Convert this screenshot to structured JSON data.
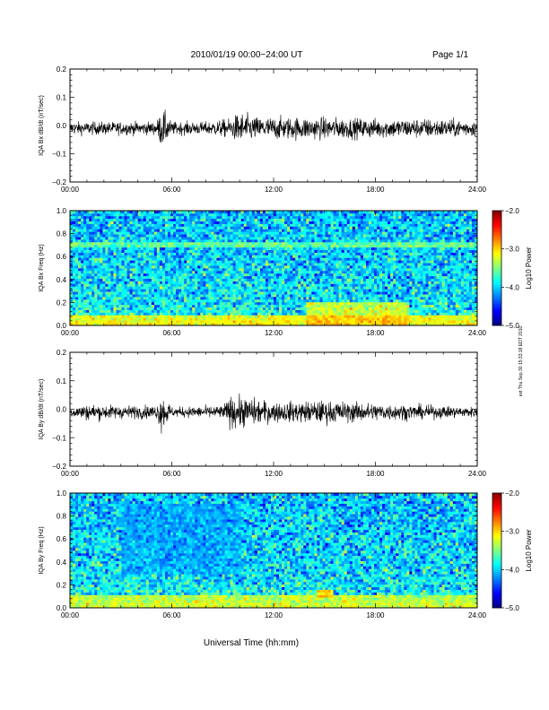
{
  "header": {
    "title": "2010/01/19  00:00−24:00 UT",
    "page": "Page 1/1"
  },
  "footer": {
    "xlabel": "Universal Time (hh:mm)"
  },
  "side_stamp": "ext Thu Sep 30 15:33:18 EDT 2010",
  "chart_data": [
    {
      "type": "line",
      "name": "bx-dbdt",
      "ylabel": "IQA Bx dB/dt (nT/sec)",
      "ylim": [
        -0.2,
        0.2
      ],
      "yticks": [
        -0.2,
        -0.1,
        0.0,
        0.1,
        0.2
      ],
      "ytick_labels": [
        "−0.2",
        "−0.1",
        "0.0",
        "0.1",
        "0.2"
      ],
      "xlim": [
        0,
        24
      ],
      "xticks": [
        0,
        6,
        12,
        18,
        24
      ],
      "xtick_labels": [
        "00:00",
        "06:00",
        "12:00",
        "18:00",
        "24:00"
      ],
      "envelope": [
        {
          "t": 0.0,
          "amp": 0.02
        },
        {
          "t": 2.0,
          "amp": 0.02
        },
        {
          "t": 4.5,
          "amp": 0.02
        },
        {
          "t": 5.1,
          "amp": 0.02
        },
        {
          "t": 5.4,
          "amp": 0.06
        },
        {
          "t": 5.6,
          "amp": 0.05
        },
        {
          "t": 6.0,
          "amp": 0.02
        },
        {
          "t": 8.0,
          "amp": 0.02
        },
        {
          "t": 9.5,
          "amp": 0.03
        },
        {
          "t": 10.0,
          "amp": 0.05
        },
        {
          "t": 11.0,
          "amp": 0.035
        },
        {
          "t": 14.0,
          "amp": 0.035
        },
        {
          "t": 18.0,
          "amp": 0.03
        },
        {
          "t": 21.0,
          "amp": 0.03
        },
        {
          "t": 24.0,
          "amp": 0.025
        }
      ]
    },
    {
      "type": "heatmap",
      "name": "bx-spectrogram",
      "ylabel": "IQA Bx Freq (Hz)",
      "ylim": [
        0.0,
        1.0
      ],
      "yticks": [
        0.0,
        0.2,
        0.4,
        0.6,
        0.8,
        1.0
      ],
      "ytick_labels": [
        "0.0",
        "0.2",
        "0.4",
        "0.6",
        "0.8",
        "1.0"
      ],
      "xlim": [
        0,
        24
      ],
      "xticks": [
        0,
        6,
        12,
        18,
        24
      ],
      "xtick_labels": [
        "00:00",
        "06:00",
        "12:00",
        "18:00",
        "24:00"
      ],
      "colorbar": {
        "label": "Log10 Power",
        "min": -5.0,
        "max": -2.0,
        "ticks": [
          -5.0,
          -4.0,
          -3.0,
          -2.0
        ],
        "tick_labels": [
          "−5.0",
          "−4.0",
          "−3.0",
          "−2.0"
        ]
      },
      "enhancements": [
        {
          "t0": 14.0,
          "t1": 20.0,
          "f0": 0.0,
          "f1": 0.2,
          "level": -2.9
        },
        {
          "t0": 0.0,
          "t1": 24.0,
          "f0": 0.0,
          "f1": 0.08,
          "level": -2.8
        },
        {
          "t0": 0.0,
          "t1": 24.0,
          "f0": 0.68,
          "f1": 0.72,
          "level": -3.3
        }
      ]
    },
    {
      "type": "line",
      "name": "by-dbdt",
      "ylabel": "IQA By dB/dt (nT/sec)",
      "ylim": [
        -0.2,
        0.2
      ],
      "yticks": [
        -0.2,
        -0.1,
        0.0,
        0.1,
        0.2
      ],
      "ytick_labels": [
        "−0.2",
        "−0.1",
        "0.0",
        "0.1",
        "0.2"
      ],
      "xlim": [
        0,
        24
      ],
      "xticks": [
        0,
        6,
        12,
        18,
        24
      ],
      "xtick_labels": [
        "00:00",
        "06:00",
        "12:00",
        "18:00",
        "24:00"
      ],
      "envelope": [
        {
          "t": 0.0,
          "amp": 0.015
        },
        {
          "t": 1.0,
          "amp": 0.025
        },
        {
          "t": 3.0,
          "amp": 0.02
        },
        {
          "t": 5.1,
          "amp": 0.02
        },
        {
          "t": 5.4,
          "amp": 0.06
        },
        {
          "t": 5.7,
          "amp": 0.04
        },
        {
          "t": 6.0,
          "amp": 0.015
        },
        {
          "t": 9.0,
          "amp": 0.02
        },
        {
          "t": 9.5,
          "amp": 0.05
        },
        {
          "t": 10.5,
          "amp": 0.045
        },
        {
          "t": 12.0,
          "amp": 0.03
        },
        {
          "t": 15.0,
          "amp": 0.035
        },
        {
          "t": 19.0,
          "amp": 0.025
        },
        {
          "t": 24.0,
          "amp": 0.015
        }
      ]
    },
    {
      "type": "heatmap",
      "name": "by-spectrogram",
      "ylabel": "IQA By Freq (Hz)",
      "ylim": [
        0.0,
        1.0
      ],
      "yticks": [
        0.0,
        0.2,
        0.4,
        0.6,
        0.8,
        1.0
      ],
      "ytick_labels": [
        "0.0",
        "0.2",
        "0.4",
        "0.6",
        "0.8",
        "1.0"
      ],
      "xlim": [
        0,
        24
      ],
      "xticks": [
        0,
        6,
        12,
        18,
        24
      ],
      "xtick_labels": [
        "00:00",
        "06:00",
        "12:00",
        "18:00",
        "24:00"
      ],
      "colorbar": {
        "label": "Log10 Power",
        "min": -5.0,
        "max": -2.0,
        "ticks": [
          -5.0,
          -4.0,
          -3.0,
          -2.0
        ],
        "tick_labels": [
          "−5.0",
          "−4.0",
          "−3.0",
          "−2.0"
        ]
      },
      "enhancements": [
        {
          "t0": 0.0,
          "t1": 24.0,
          "f0": 0.0,
          "f1": 0.12,
          "level": -3.0
        },
        {
          "t0": 14.5,
          "t1": 15.5,
          "f0": 0.1,
          "f1": 0.17,
          "level": -2.5
        },
        {
          "t0": 3.0,
          "t1": 10.0,
          "f0": 0.3,
          "f1": 0.9,
          "level": -4.2
        }
      ]
    }
  ]
}
